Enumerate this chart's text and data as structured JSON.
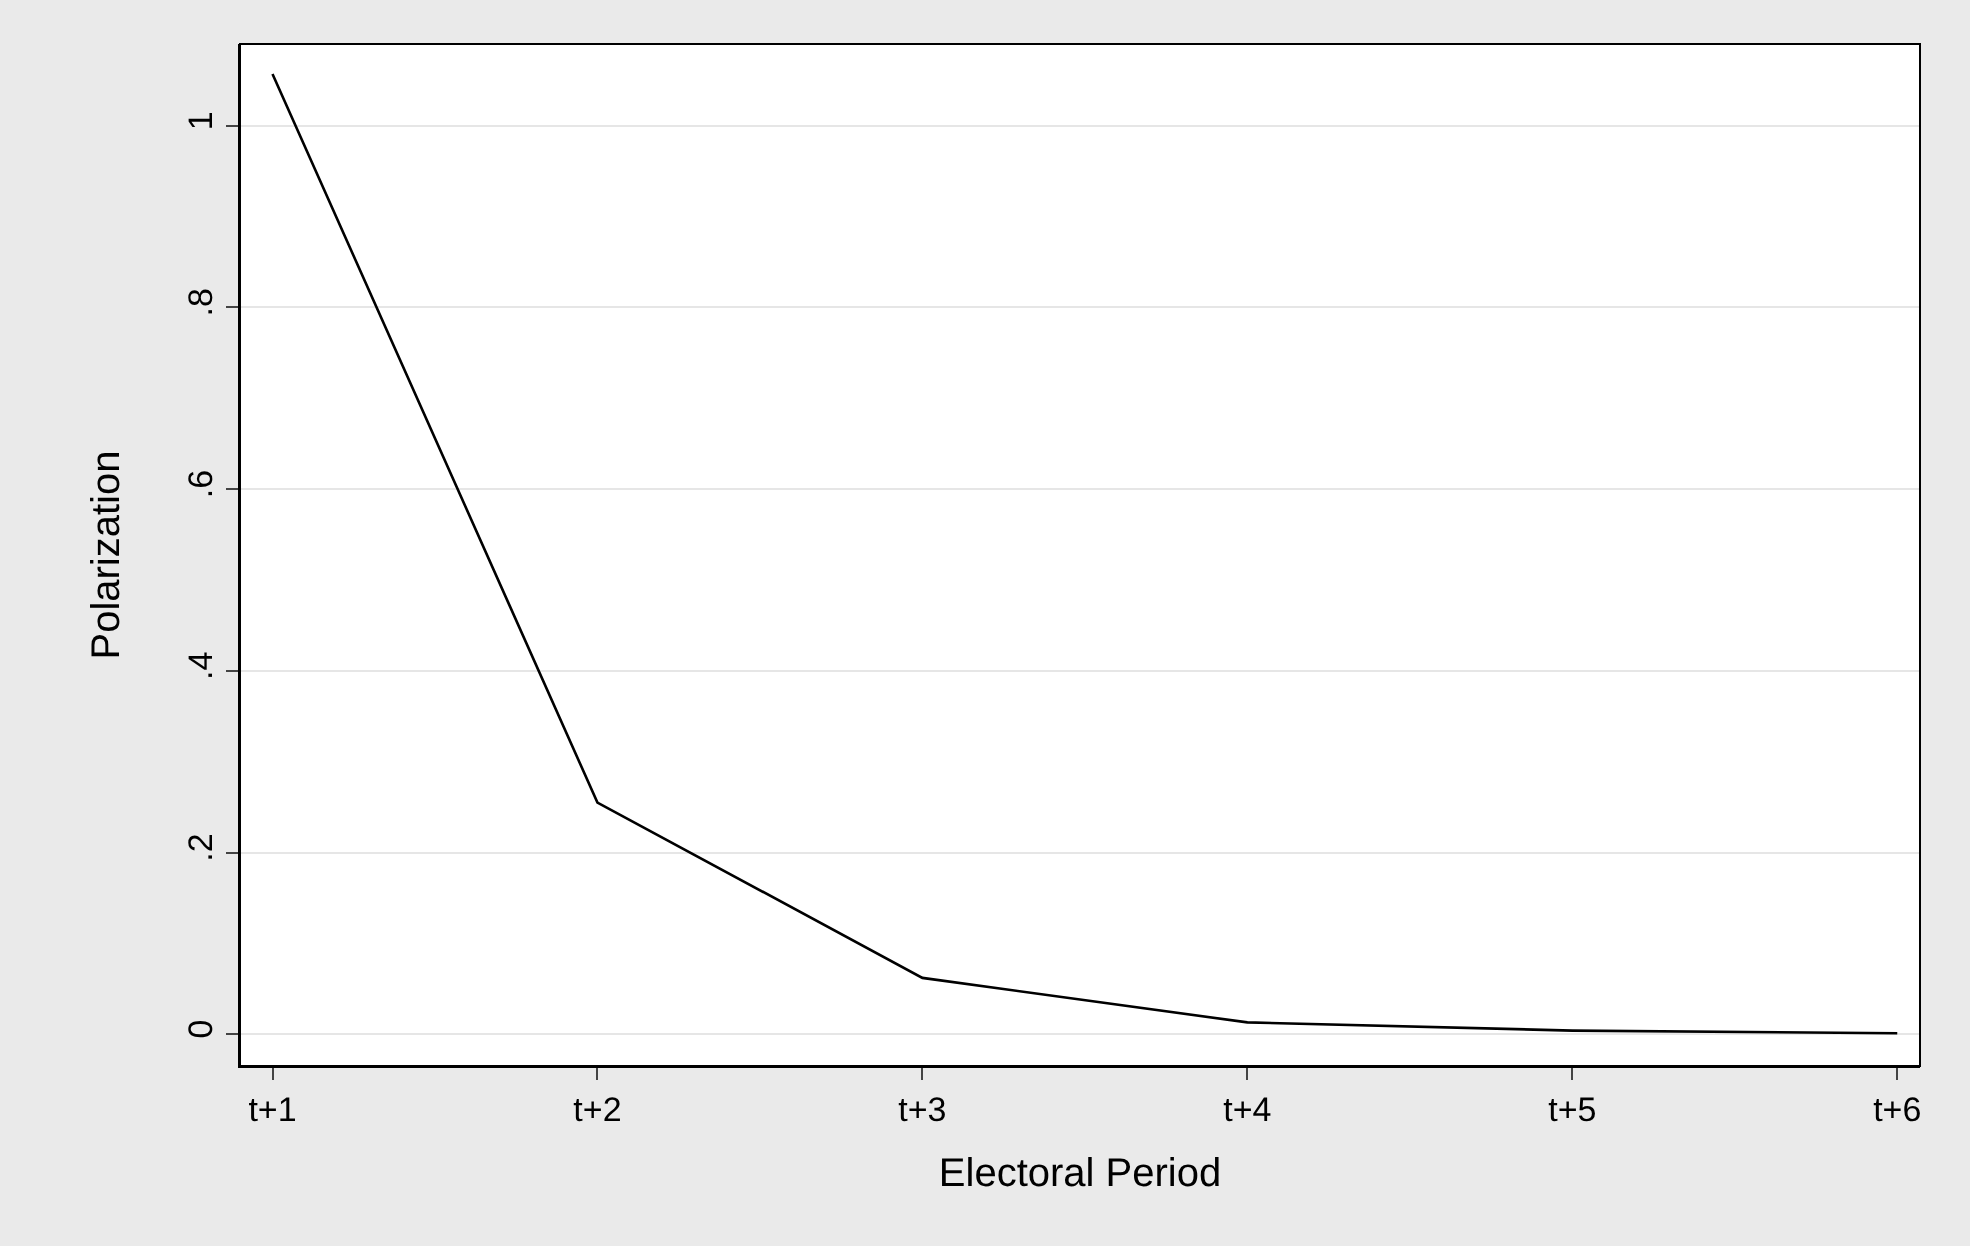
{
  "chart_data": {
    "type": "line",
    "xlabel": "Electoral Period",
    "ylabel": "Polarization",
    "categories": [
      "t+1",
      "t+2",
      "t+3",
      "t+4",
      "t+5",
      "t+6"
    ],
    "series": [
      {
        "color": "#000000",
        "values": [
          1.057,
          0.255,
          0.062,
          0.013,
          0.004,
          0.001
        ]
      }
    ],
    "ylim": [
      -0.035,
      1.09
    ],
    "yticks": [
      0,
      {
        "value": 0.2,
        "label": ".2"
      },
      {
        "value": 0.4,
        "label": ".4"
      },
      {
        "value": 0.6,
        "label": ".6"
      },
      {
        "value": 0.8,
        "label": ".8"
      },
      1
    ],
    "grid": "y",
    "marker": "none",
    "line_style": "solid"
  }
}
